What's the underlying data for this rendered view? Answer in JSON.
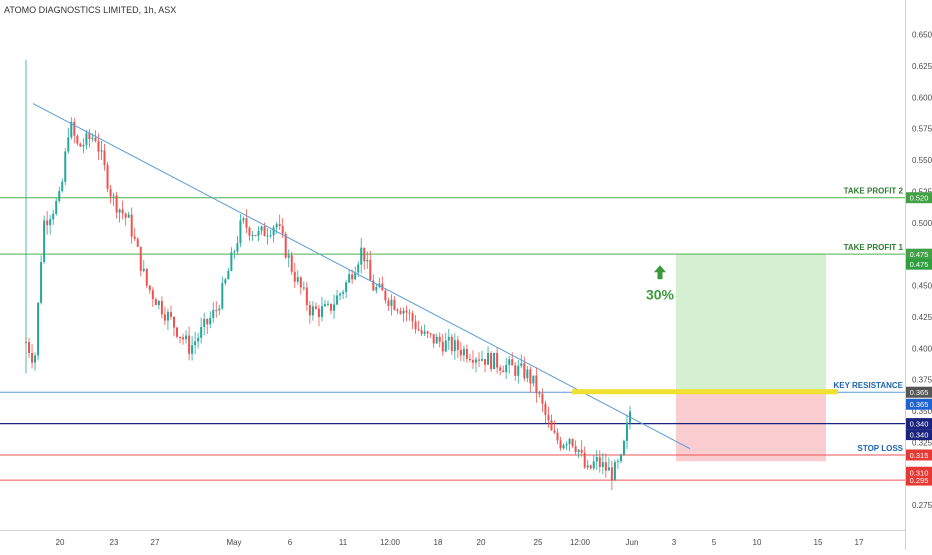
{
  "header": {
    "title": "ATOMO DIAGNOSTICS LIMITED, 1h, ASX"
  },
  "colors": {
    "up_candle": "#26a69a",
    "down_candle": "#ef5350",
    "trendline": "#5b9bd5",
    "take_profit_line": "#4caf50",
    "key_resistance_line": "#5b9bd5",
    "key_resistance_zone": "#f0e030",
    "entry_line": "#1a237e",
    "stop_loss_line": "#ef5350",
    "profit_zone": "#cfeecb",
    "loss_zone": "#f9c9cb",
    "arrow_green": "#3a9a3a"
  },
  "chart_data": {
    "type": "candlestick",
    "title": "ATOMO DIAGNOSTICS LIMITED, 1h, ASX",
    "x_tick_labels": [
      "20",
      "23",
      "27",
      "May",
      "6",
      "11",
      "12:00",
      "18",
      "20",
      "25",
      "12:00",
      "Jun",
      "3",
      "5",
      "10",
      "15",
      "17"
    ],
    "y_tick_labels": [
      "0.275",
      "0.300",
      "0.325",
      "0.350",
      "0.375",
      "0.400",
      "0.425",
      "0.450",
      "0.475",
      "0.500",
      "0.525",
      "0.550",
      "0.575",
      "0.600",
      "0.625",
      "0.650"
    ],
    "ylim": [
      0.26,
      0.66
    ],
    "grid": false,
    "price_path": [
      [
        0,
        0.405
      ],
      [
        1,
        0.39
      ],
      [
        2,
        0.5
      ],
      [
        4,
        0.52
      ],
      [
        5,
        0.58
      ],
      [
        6,
        0.56
      ],
      [
        8,
        0.57
      ],
      [
        10,
        0.52
      ],
      [
        12,
        0.5
      ],
      [
        14,
        0.45
      ],
      [
        16,
        0.43
      ],
      [
        19,
        0.4
      ],
      [
        21,
        0.42
      ],
      [
        22,
        0.43
      ],
      [
        23,
        0.45
      ],
      [
        25,
        0.5
      ],
      [
        27,
        0.49
      ],
      [
        29,
        0.5
      ],
      [
        31,
        0.46
      ],
      [
        33,
        0.43
      ],
      [
        35,
        0.43
      ],
      [
        37,
        0.45
      ],
      [
        39,
        0.48
      ],
      [
        40,
        0.45
      ],
      [
        42,
        0.44
      ],
      [
        44,
        0.43
      ],
      [
        46,
        0.41
      ],
      [
        48,
        0.405
      ],
      [
        50,
        0.4
      ],
      [
        52,
        0.395
      ],
      [
        54,
        0.39
      ],
      [
        56,
        0.385
      ],
      [
        58,
        0.38
      ],
      [
        59,
        0.37
      ],
      [
        60,
        0.35
      ],
      [
        61,
        0.33
      ],
      [
        62,
        0.325
      ],
      [
        63,
        0.33
      ],
      [
        64,
        0.32
      ],
      [
        65,
        0.3
      ],
      [
        66,
        0.31
      ],
      [
        67,
        0.305
      ],
      [
        68,
        0.3
      ],
      [
        69,
        0.31
      ],
      [
        70,
        0.35
      ]
    ],
    "trendline": [
      [
        0.595,
        0.19
      ],
      [
        0.343,
        0.11
      ]
    ],
    "levels": [
      {
        "name": "TAKE PROFIT 2",
        "price": 0.52,
        "badge": "0.520",
        "role": "take_profit_2"
      },
      {
        "name": "TAKE PROFIT 1",
        "price": 0.475,
        "badge": "0.475",
        "role": "take_profit_1"
      },
      {
        "name": "KEY RESISTANCE",
        "price": 0.365,
        "badge": "0.365",
        "role": "key_resistance"
      },
      {
        "name": "",
        "price": 0.34,
        "badge": "0.340",
        "role": "entry"
      },
      {
        "name": "STOP LOSS",
        "price": 0.315,
        "badge": "0.315",
        "role": "stop_loss"
      },
      {
        "name": "",
        "price": 0.295,
        "badge": "0.295",
        "role": "support"
      }
    ],
    "extra_badges": [
      "0.475",
      "0.365",
      "0.340",
      "0.310"
    ],
    "trade_setup": {
      "entry": 0.365,
      "target": 0.475,
      "stop": 0.31,
      "gain_label": "30%"
    }
  }
}
